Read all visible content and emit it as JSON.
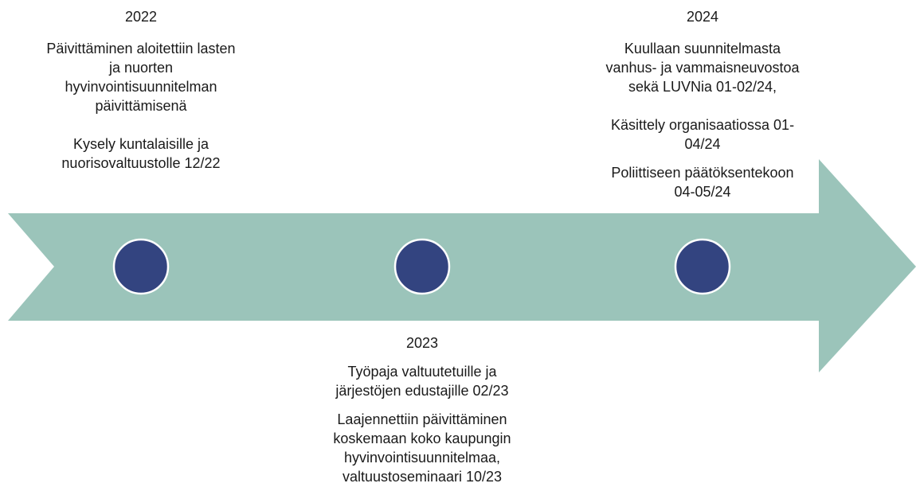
{
  "milestones": [
    {
      "year": "2022",
      "paragraphs": [
        [
          "Päivittäminen aloitettiin lasten",
          "ja nuorten",
          "hyvinvointisuunnitelman",
          "päivittämisenä"
        ],
        [
          "Kysely kuntalaisille ja",
          "nuorisovaltuustolle 12/22"
        ]
      ]
    },
    {
      "year": "2023",
      "paragraphs": [
        [
          "Työpaja valtuutetuille ja",
          "järjestöjen edustajille 02/23"
        ],
        [
          "Laajennettiin päivittäminen",
          "koskemaan koko kaupungin",
          "hyvinvointisuunnitelmaa,",
          "valtuustoseminaari 10/23"
        ]
      ]
    },
    {
      "year": "2024",
      "paragraphs": [
        [
          "Kuullaan suunnitelmasta",
          "vanhus- ja vammaisneuvostoa",
          "sekä LUVNia 01-02/24,"
        ],
        [
          "Käsittely organisaatiossa 01-",
          "04/24"
        ],
        [
          "Poliittiseen päätöksentekoon",
          "04-05/24"
        ]
      ]
    }
  ]
}
